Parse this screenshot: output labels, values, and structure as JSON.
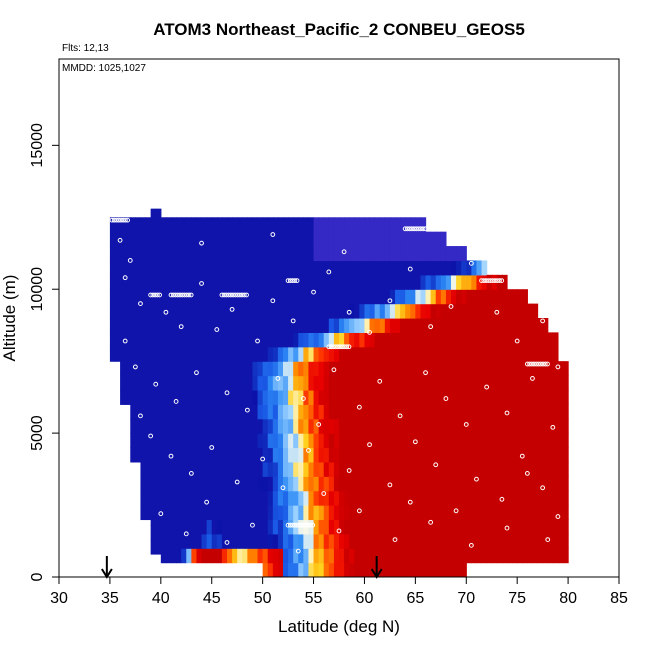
{
  "chart_data": {
    "type": "heatmap",
    "title": "ATOM3 Northeast_Pacific_2 CONBEU_GEOS5",
    "annotations": {
      "flights": "Flts: 12,13",
      "dates": "MMDD: 1025,1027"
    },
    "xlabel": "Latitude (deg N)",
    "ylabel": "Altitude (m)",
    "xlim": [
      30,
      85
    ],
    "ylim": [
      0,
      18000
    ],
    "xticks": [
      30,
      35,
      40,
      45,
      50,
      55,
      60,
      65,
      70,
      75,
      80,
      85
    ],
    "yticks": [
      0,
      5000,
      10000,
      15000
    ],
    "grid": false,
    "legend": "none",
    "colormap": {
      "low": [
        "#3a2bc8",
        "#0b12a8",
        "#1a5ae6",
        "#2f8cf5",
        "#9fd3ff",
        "#fffbe6"
      ],
      "high": [
        "#fffbe6",
        "#ffd21e",
        "#ff8c00",
        "#ff3a00",
        "#e80000",
        "#c40000"
      ]
    },
    "field_extent": {
      "top_altitude": [
        [
          35,
          12500
        ],
        [
          66,
          12500
        ],
        [
          66,
          12000
        ],
        [
          68,
          12000
        ],
        [
          68,
          11500
        ],
        [
          70,
          11500
        ],
        [
          70,
          11000
        ],
        [
          72,
          11000
        ],
        [
          72,
          10500
        ],
        [
          74,
          10500
        ],
        [
          74,
          10000
        ],
        [
          76,
          10000
        ],
        [
          76,
          9500
        ],
        [
          77,
          9500
        ],
        [
          77,
          9000
        ],
        [
          78,
          9000
        ],
        [
          78,
          8500
        ],
        [
          79,
          8500
        ],
        [
          79,
          7500
        ],
        [
          80,
          7500
        ]
      ],
      "bottom_altitude": [
        [
          35,
          7500
        ],
        [
          36,
          7500
        ],
        [
          36,
          6000
        ],
        [
          37,
          6000
        ],
        [
          37,
          4000
        ],
        [
          38,
          4000
        ],
        [
          38,
          2000
        ],
        [
          39,
          2000
        ],
        [
          39,
          800
        ],
        [
          40,
          800
        ],
        [
          40,
          500
        ],
        [
          50,
          500
        ],
        [
          50,
          0
        ],
        [
          70,
          0
        ],
        [
          70,
          500
        ],
        [
          80,
          500
        ]
      ]
    },
    "flight_markers_lat": [
      34.7,
      61.2
    ],
    "sample_tracks": [
      {
        "lat_range": [
          35.2,
          36.8
        ],
        "altitude": 12400
      },
      {
        "lat_range": [
          39.0,
          40.0
        ],
        "altitude": 9800
      },
      {
        "lat_range": [
          41.0,
          43.0
        ],
        "altitude": 9800
      },
      {
        "lat_range": [
          46.0,
          48.5
        ],
        "altitude": 9800
      },
      {
        "lat_range": [
          52.5,
          53.5
        ],
        "altitude": 10300
      },
      {
        "lat_range": [
          56.5,
          58.5
        ],
        "altitude": 8000
      },
      {
        "lat_range": [
          64.0,
          66.0
        ],
        "altitude": 12100
      },
      {
        "lat_range": [
          71.5,
          73.5
        ],
        "altitude": 10300
      },
      {
        "lat_range": [
          76.0,
          78.0
        ],
        "altitude": 7400
      },
      {
        "lat_range": [
          52.5,
          55.0
        ],
        "altitude": 1800
      }
    ],
    "scatter_points": [
      [
        36.0,
        11700
      ],
      [
        37.0,
        11000
      ],
      [
        36.5,
        10400
      ],
      [
        38.0,
        9500
      ],
      [
        40.5,
        9200
      ],
      [
        42.0,
        8700
      ],
      [
        44.0,
        10200
      ],
      [
        45.5,
        8600
      ],
      [
        47.0,
        9300
      ],
      [
        49.5,
        8200
      ],
      [
        51.0,
        9600
      ],
      [
        53.0,
        8900
      ],
      [
        55.0,
        9900
      ],
      [
        56.5,
        10600
      ],
      [
        58.5,
        9200
      ],
      [
        60.5,
        8500
      ],
      [
        62.5,
        9600
      ],
      [
        64.5,
        10700
      ],
      [
        66.5,
        8700
      ],
      [
        68.5,
        9400
      ],
      [
        70.5,
        10900
      ],
      [
        73.0,
        9200
      ],
      [
        75.0,
        8200
      ],
      [
        77.5,
        8900
      ],
      [
        79.0,
        7300
      ],
      [
        37.5,
        7300
      ],
      [
        39.5,
        6700
      ],
      [
        41.5,
        6100
      ],
      [
        43.5,
        7100
      ],
      [
        46.5,
        6400
      ],
      [
        48.5,
        5800
      ],
      [
        51.5,
        6900
      ],
      [
        54.0,
        6200
      ],
      [
        57.0,
        7200
      ],
      [
        59.5,
        5900
      ],
      [
        61.5,
        6800
      ],
      [
        63.5,
        5600
      ],
      [
        66.0,
        7100
      ],
      [
        68.0,
        6200
      ],
      [
        70.0,
        5300
      ],
      [
        72.0,
        6600
      ],
      [
        74.0,
        5700
      ],
      [
        76.5,
        6900
      ],
      [
        78.5,
        5200
      ],
      [
        39.0,
        4900
      ],
      [
        41.0,
        4200
      ],
      [
        43.0,
        3600
      ],
      [
        45.0,
        4500
      ],
      [
        47.5,
        3300
      ],
      [
        50.0,
        4100
      ],
      [
        52.0,
        3100
      ],
      [
        54.5,
        4400
      ],
      [
        56.0,
        2900
      ],
      [
        58.5,
        3700
      ],
      [
        60.5,
        4600
      ],
      [
        62.5,
        3200
      ],
      [
        64.5,
        2600
      ],
      [
        67.0,
        3900
      ],
      [
        69.0,
        2300
      ],
      [
        71.0,
        3400
      ],
      [
        73.5,
        2700
      ],
      [
        75.5,
        4200
      ],
      [
        77.5,
        3100
      ],
      [
        79.0,
        2100
      ],
      [
        40.0,
        2200
      ],
      [
        42.5,
        1500
      ],
      [
        44.5,
        2600
      ],
      [
        46.5,
        1200
      ],
      [
        49.0,
        1800
      ],
      [
        53.5,
        900
      ],
      [
        57.5,
        1600
      ],
      [
        59.5,
        2300
      ],
      [
        63.0,
        1300
      ],
      [
        66.5,
        1900
      ],
      [
        70.5,
        1100
      ],
      [
        74.0,
        1700
      ],
      [
        78.0,
        1300
      ],
      [
        38.0,
        5600
      ],
      [
        55.5,
        5300
      ],
      [
        65.0,
        4700
      ],
      [
        76.0,
        3600
      ],
      [
        36.5,
        8200
      ],
      [
        44.0,
        11600
      ],
      [
        51.0,
        11900
      ],
      [
        58.0,
        11300
      ]
    ]
  }
}
